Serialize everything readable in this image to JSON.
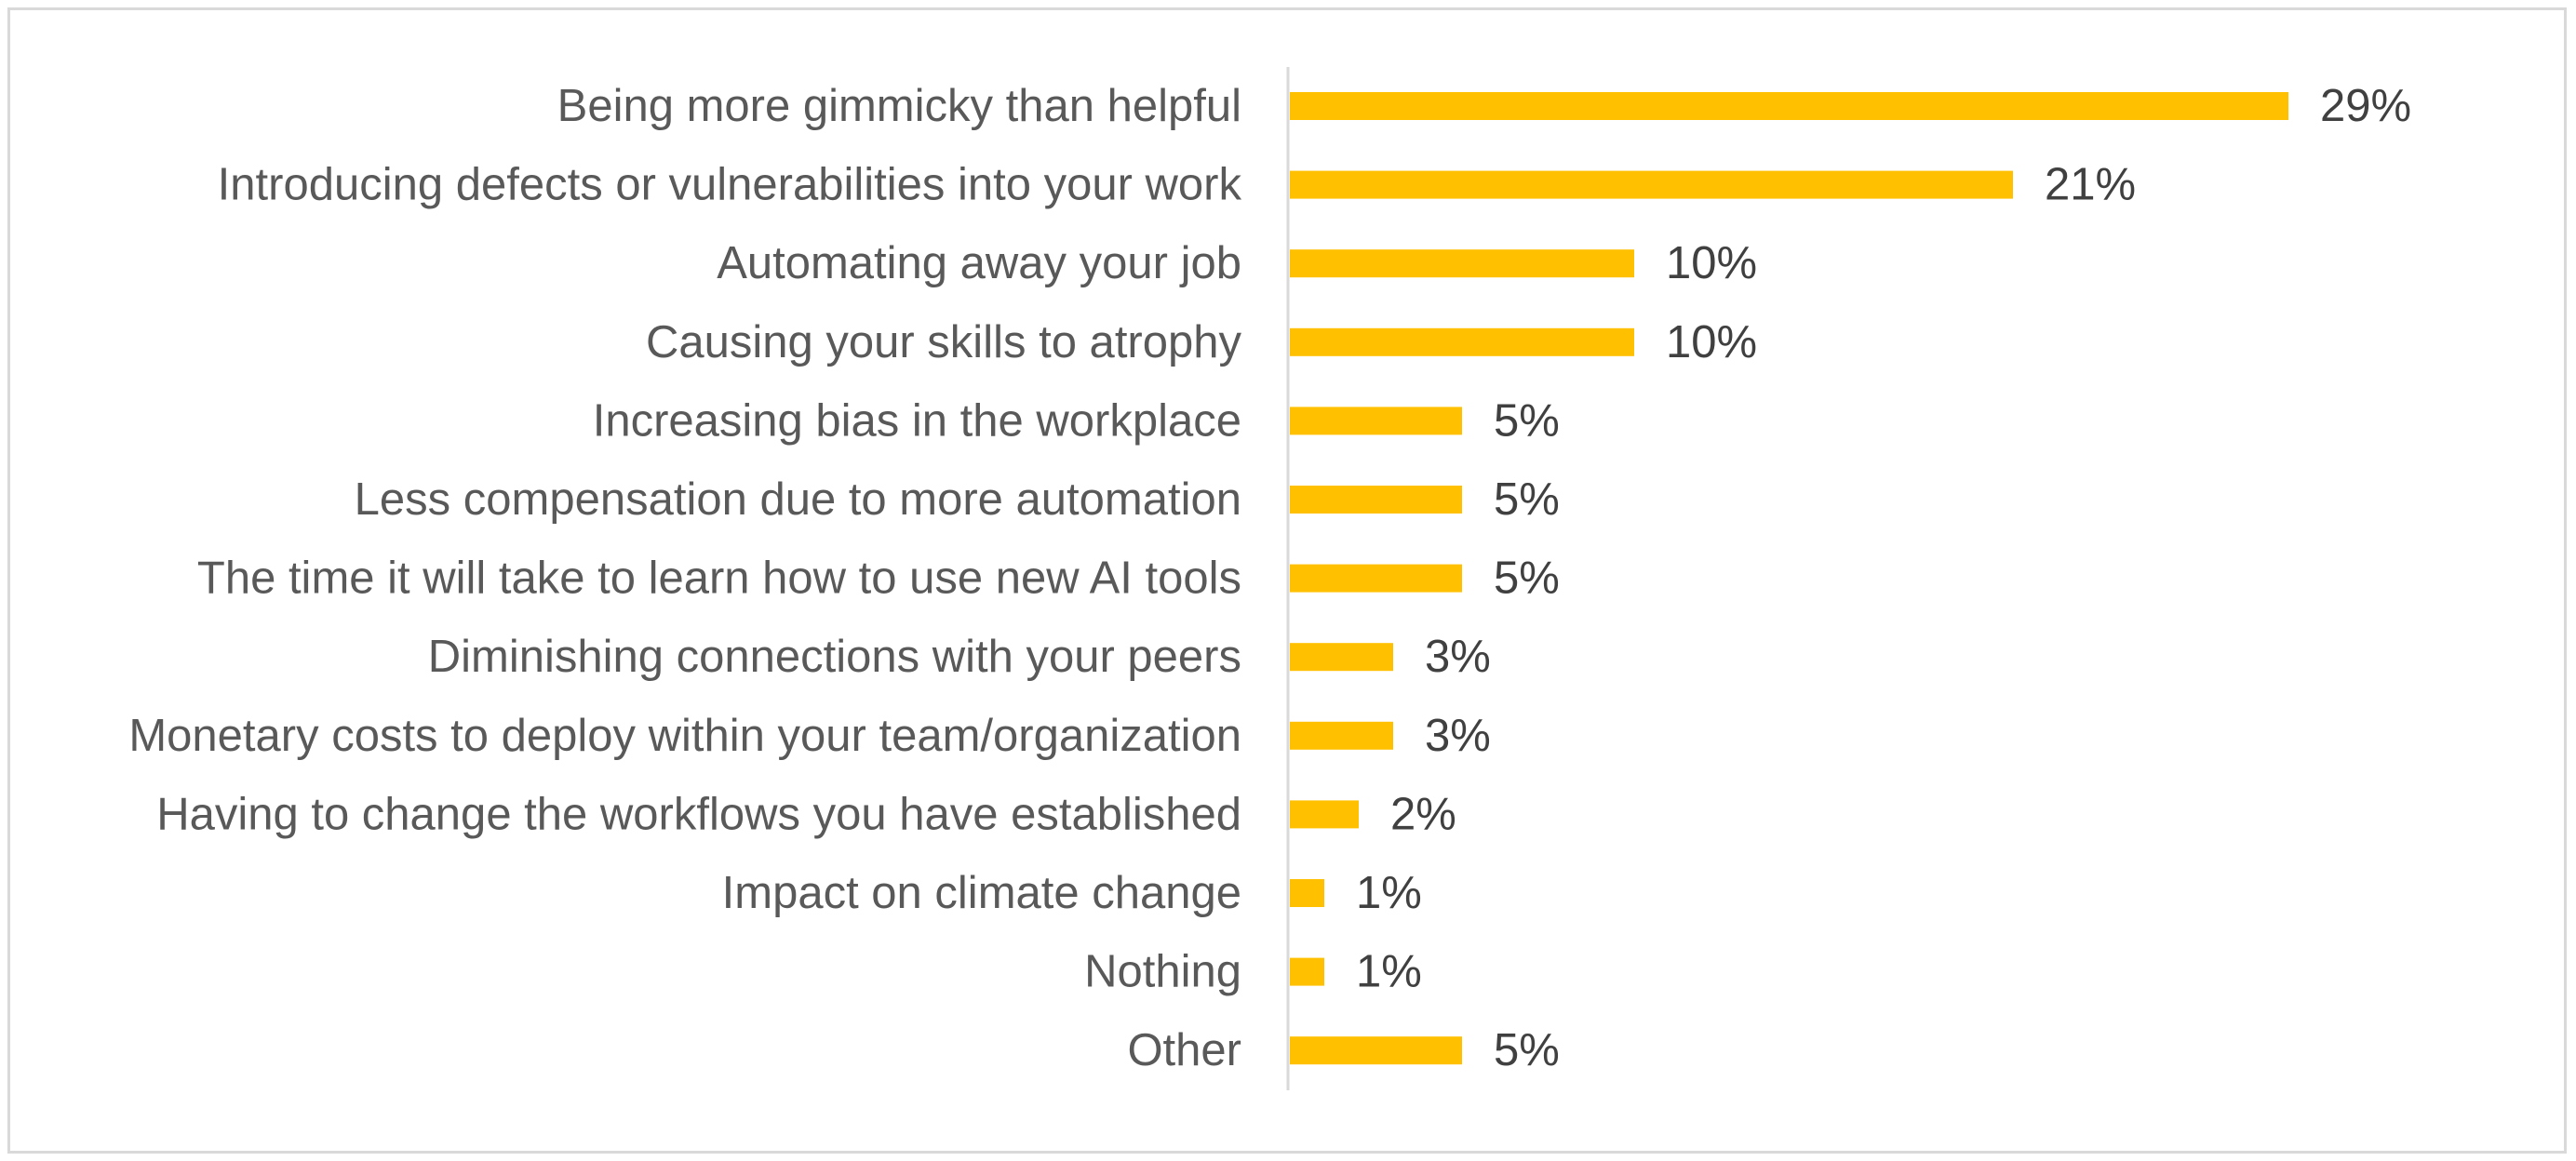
{
  "chart_data": {
    "type": "bar",
    "orientation": "horizontal",
    "categories": [
      "Being more gimmicky than helpful",
      "Introducing defects or vulnerabilities into your work",
      "Automating away your job",
      "Causing your skills to atrophy",
      "Increasing bias in the workplace",
      "Less compensation due to more automation",
      "The time it will take to learn how to use new AI tools",
      "Diminishing connections with your peers",
      "Monetary costs to deploy within your team/organization",
      "Having to change the workflows you have established",
      "Impact on climate change",
      "Nothing",
      "Other"
    ],
    "values": [
      29,
      21,
      10,
      10,
      5,
      5,
      5,
      3,
      3,
      2,
      1,
      1,
      5
    ],
    "value_labels": [
      "29%",
      "21%",
      "10%",
      "10%",
      "5%",
      "5%",
      "5%",
      "3%",
      "3%",
      "2%",
      "1%",
      "1%",
      "5%"
    ],
    "title": "",
    "xlabel": "",
    "ylabel": "",
    "xlim": [
      0,
      35
    ],
    "grid": false,
    "legend": "none",
    "bar_color": "#FFC000",
    "axis_color": "#D9D9D9"
  }
}
